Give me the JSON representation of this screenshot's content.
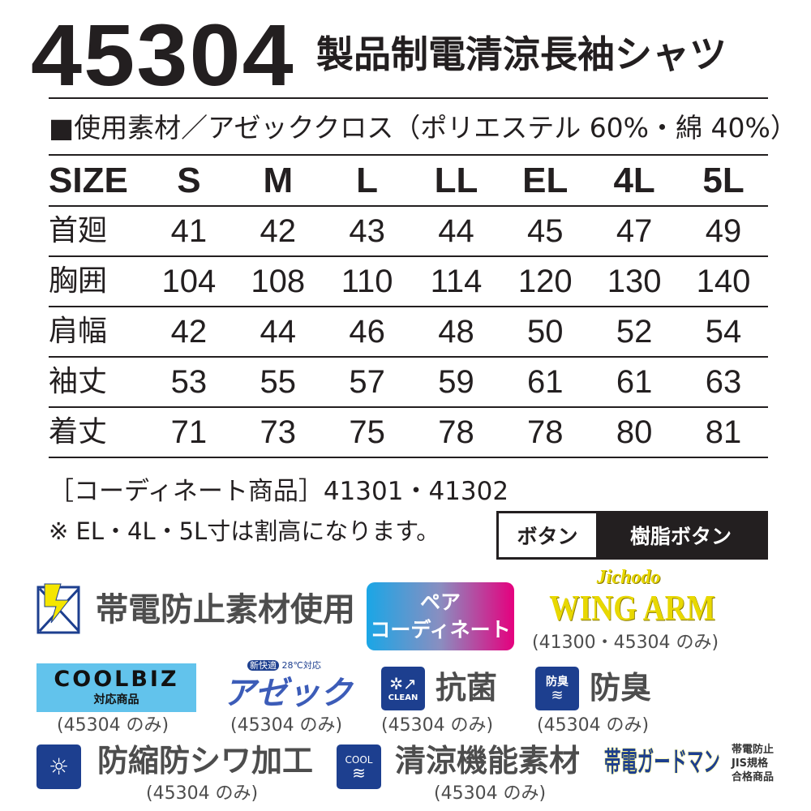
{
  "product": {
    "code": "45304",
    "name": "製品制電清涼長袖シャツ",
    "material": "■使用素材／アゼッククロス（ポリエステル 60%・綿 40%）"
  },
  "size_table": {
    "headers": [
      "SIZE",
      "S",
      "M",
      "L",
      "LL",
      "EL",
      "4L",
      "5L"
    ],
    "rows": [
      {
        "label": "首廻",
        "values": [
          "41",
          "42",
          "43",
          "44",
          "45",
          "47",
          "49"
        ]
      },
      {
        "label": "胸囲",
        "values": [
          "104",
          "108",
          "110",
          "114",
          "120",
          "130",
          "140"
        ]
      },
      {
        "label": "肩幅",
        "values": [
          "42",
          "44",
          "46",
          "48",
          "50",
          "52",
          "54"
        ]
      },
      {
        "label": "袖丈",
        "values": [
          "53",
          "55",
          "57",
          "59",
          "61",
          "61",
          "63"
        ]
      },
      {
        "label": "着丈",
        "values": [
          "71",
          "73",
          "75",
          "78",
          "78",
          "80",
          "81"
        ]
      }
    ]
  },
  "coordinate": "［コーディネート商品］41301・41302",
  "note": "※ EL・4L・5L寸は割高になります。",
  "button": {
    "label": "ボタン",
    "value": "樹脂ボタン"
  },
  "badges": {
    "antistatic": "帯電防止素材使用",
    "pair": [
      "ペア",
      "コーディネート"
    ],
    "wingarm": {
      "brand": "Jichodo",
      "name": "WING ARM",
      "note": "(41300・45304 のみ)"
    },
    "coolbiz": {
      "name": "COOLBIZ",
      "sub": "対応商品",
      "note": "(45304 のみ)"
    },
    "azec": {
      "tag1": "新快適",
      "tag2": "28℃対応",
      "name": "アゼック",
      "note": "(45304 のみ)"
    },
    "antibac": {
      "icon_text": "CLEAN",
      "label": "抗菌",
      "note": "(45304 のみ)"
    },
    "deodor": {
      "icon_text": "防臭",
      "label": "防臭",
      "note": "(45304 のみ)"
    },
    "shrink": {
      "label": "防縮防シワ加工",
      "note": "(45304 のみ)"
    },
    "cool": {
      "icon_text": "COOL",
      "label": "清涼機能素材",
      "note": "(45304 のみ)"
    },
    "guardman": {
      "logo": "帯電ガードマン",
      "lines": [
        "帯電防止",
        "JIS規格",
        "合格商品"
      ]
    }
  },
  "colors": {
    "text": "#231f20",
    "badge_gray": "#4d4d4d",
    "blue": "#1d3f8f",
    "wing_yellow": "#f5e600",
    "coolbiz_bg": "#62c3ec"
  }
}
